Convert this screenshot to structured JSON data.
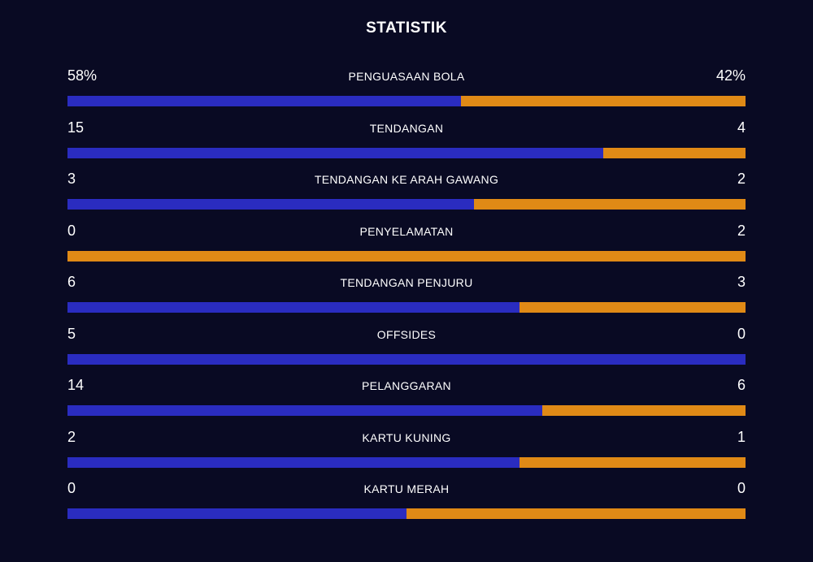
{
  "title": "STATISTIK",
  "colors": {
    "home": "#2a2cc0",
    "away": "#e08a16",
    "background": "#090a23"
  },
  "stats": [
    {
      "label": "PENGUASAAN BOLA",
      "home": "58%",
      "away": "42%",
      "home_share": 0.58
    },
    {
      "label": "TENDANGAN",
      "home": "15",
      "away": "4",
      "home_share": 0.79
    },
    {
      "label": "TENDANGAN KE ARAH GAWANG",
      "home": "3",
      "away": "2",
      "home_share": 0.6
    },
    {
      "label": "PENYELAMATAN",
      "home": "0",
      "away": "2",
      "home_share": 0
    },
    {
      "label": "TENDANGAN PENJURU",
      "home": "6",
      "away": "3",
      "home_share": 0.667
    },
    {
      "label": "OFFSIDES",
      "home": "5",
      "away": "0",
      "home_share": 1
    },
    {
      "label": "PELANGGARAN",
      "home": "14",
      "away": "6",
      "home_share": 0.7
    },
    {
      "label": "KARTU KUNING",
      "home": "2",
      "away": "1",
      "home_share": 0.667
    },
    {
      "label": "KARTU MERAH",
      "home": "0",
      "away": "0",
      "home_share": 0.5
    }
  ]
}
